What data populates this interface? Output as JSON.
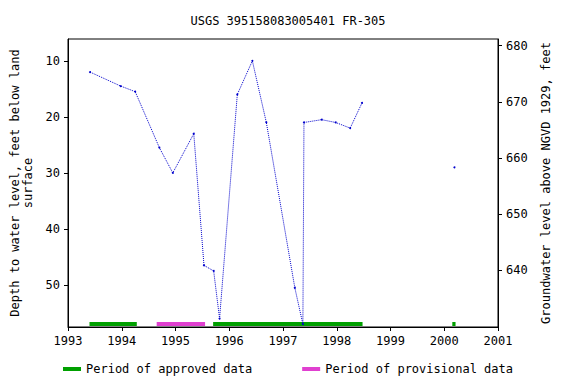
{
  "chart_data": {
    "type": "line",
    "title": "USGS 395158083005401 FR-305",
    "x_label": "",
    "y_label": "Depth to water level, feet below land\nsurface",
    "y2_label": "Groundwater level above NGVD 1929, feet",
    "x": [
      1993.41,
      1993.98,
      1994.25,
      1994.7,
      1994.95,
      1995.34,
      1995.53,
      1995.71,
      1995.82,
      1996.15,
      1996.43,
      1996.69,
      1997.22,
      1997.37,
      1997.39,
      1997.72,
      1997.98,
      1998.25,
      1998.47,
      null,
      2000.19
    ],
    "values": [
      12,
      14.5,
      15.5,
      25.5,
      30,
      23,
      46.5,
      47.5,
      56,
      16,
      10,
      21,
      50.5,
      57,
      21,
      20.5,
      21,
      22,
      17.5,
      null,
      29
    ],
    "color": "#0000cc",
    "marker": "circle",
    "line_style": "dotted",
    "xlim": [
      1993,
      2001
    ],
    "xticks": [
      1993,
      1994,
      1995,
      1996,
      1997,
      1998,
      1999,
      2000,
      2001
    ],
    "ylim": [
      6.1,
      57.5
    ],
    "yticks": [
      10,
      20,
      30,
      40,
      50
    ],
    "y2lim": [
      629.8,
      681.2
    ],
    "y2ticks": [
      640,
      650,
      660,
      670,
      680
    ],
    "grid": false,
    "legend": "bottom",
    "periods": [
      {
        "name": "Period of approved data",
        "color": "#00a000",
        "ranges": [
          [
            1993.4,
            1994.28
          ],
          [
            1995.7,
            1998.48
          ],
          [
            2000.15,
            2000.21
          ]
        ]
      },
      {
        "name": "Period of provisional data",
        "color": "#e040d0",
        "ranges": [
          [
            1994.65,
            1995.55
          ]
        ]
      }
    ]
  }
}
